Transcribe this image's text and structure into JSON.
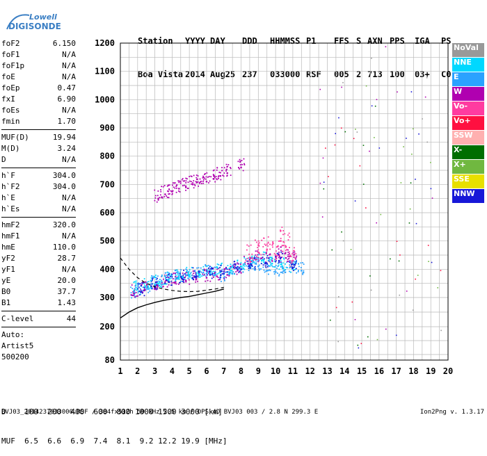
{
  "logo": {
    "line1": "Lowell",
    "line2": "DIGISONDE"
  },
  "header": {
    "row1": [
      "Station",
      "YYYY",
      "DAY",
      "DDD",
      "HHMMSS",
      "P1",
      "FFS",
      "S",
      "AXN",
      "PPS",
      "IGA",
      "PS"
    ],
    "row2": [
      "Boa Vista",
      "2014",
      "Aug25",
      "237",
      "033000",
      "RSF",
      "005",
      "2",
      "713",
      "100",
      "03+",
      "C0"
    ]
  },
  "params": {
    "group1": [
      {
        "name": "foF2",
        "value": "6.150"
      },
      {
        "name": "foF1",
        "value": "N/A"
      },
      {
        "name": "foF1p",
        "value": "N/A"
      },
      {
        "name": "foE",
        "value": "N/A"
      },
      {
        "name": "foEp",
        "value": "0.47"
      },
      {
        "name": "fxI",
        "value": "6.90"
      },
      {
        "name": "foEs",
        "value": "N/A"
      },
      {
        "name": "fmin",
        "value": "1.70"
      }
    ],
    "group2": [
      {
        "name": "MUF(D)",
        "value": "19.94"
      },
      {
        "name": "M(D)",
        "value": "3.24"
      },
      {
        "name": "D",
        "value": "N/A"
      }
    ],
    "group3": [
      {
        "name": "h`F",
        "value": "304.0"
      },
      {
        "name": "h`F2",
        "value": "304.0"
      },
      {
        "name": "h`E",
        "value": "N/A"
      },
      {
        "name": "h`Es",
        "value": "N/A"
      }
    ],
    "group4": [
      {
        "name": "hmF2",
        "value": "320.0"
      },
      {
        "name": "hmF1",
        "value": "N/A"
      },
      {
        "name": "hmE",
        "value": "110.0"
      },
      {
        "name": "yF2",
        "value": "28.7"
      },
      {
        "name": "yF1",
        "value": "N/A"
      },
      {
        "name": "yE",
        "value": "20.0"
      },
      {
        "name": "B0",
        "value": "37.7"
      },
      {
        "name": "B1",
        "value": "1.43"
      }
    ],
    "group5": [
      {
        "name": "C-level",
        "value": "44"
      }
    ],
    "auto": [
      "Auto:",
      "Artist5",
      "500200"
    ]
  },
  "legend": [
    {
      "label": "NoVal",
      "color": "#999999"
    },
    {
      "label": "NNE",
      "color": "#00d8ff"
    },
    {
      "label": "E",
      "color": "#2aa2ff"
    },
    {
      "label": "W",
      "color": "#b000b0"
    },
    {
      "label": "Vo-",
      "color": "#ff3ca0"
    },
    {
      "label": "Vo+",
      "color": "#ff1040"
    },
    {
      "label": "SSW",
      "color": "#ffb0b0"
    },
    {
      "label": "X-",
      "color": "#006e00"
    },
    {
      "label": "X+",
      "color": "#70b840"
    },
    {
      "label": "SSE",
      "color": "#e8e000"
    },
    {
      "label": "NNW",
      "color": "#1818d8"
    }
  ],
  "footer": {
    "d_row": "D    100  200  400  600  800 1000 1500 3000 [km]",
    "muf_row": "MUF  6.5  6.6  6.9  7.4  8.1  9.2 12.2 19.9 [MHz]",
    "info": "BVJ03_2014237033000.RSF / 384fx512h 50 kHz 2.5 km / DPS-4D BVJ03 003 / 2.8 N 299.3 E",
    "version": "Ion2Png v. 1.3.17"
  },
  "chart_data": {
    "type": "scatter",
    "xlabel": "",
    "ylabel": "",
    "xlim": [
      1,
      20
    ],
    "ylim": [
      80,
      1200
    ],
    "x_ticks": [
      "1",
      "2",
      "3",
      "4",
      "5",
      "6",
      "7",
      "8",
      "9",
      "10",
      "11",
      "12",
      "13",
      "14",
      "15",
      "16",
      "17",
      "18",
      "19",
      "20"
    ],
    "y_ticks": [
      "80",
      "200",
      "300",
      "400",
      "500",
      "600",
      "700",
      "800",
      "900",
      "1000",
      "1100",
      "1200"
    ],
    "grid": true,
    "series": [
      {
        "name": "E",
        "x": [
          1.8,
          2.2,
          2.6,
          3.0,
          3.4,
          3.8,
          4.2,
          4.6,
          5.0,
          5.5,
          6.0,
          6.5,
          7.0,
          7.5,
          8.0,
          8.5,
          9.0,
          9.5,
          10.0,
          10.5,
          11.0,
          11.5
        ],
        "y": [
          310,
          320,
          330,
          345,
          355,
          360,
          365,
          370,
          380,
          375,
          385,
          390,
          370,
          385,
          400,
          405,
          410,
          395,
          390,
          395,
          400,
          395
        ]
      },
      {
        "name": "W",
        "x": [
          1.8,
          2.4,
          3.0,
          3.6,
          4.2,
          4.8,
          5.4,
          6.0,
          6.6,
          7.2,
          7.8,
          8.4,
          9.0,
          9.6,
          10.2,
          10.6,
          11.0
        ],
        "y": [
          315,
          325,
          335,
          350,
          355,
          360,
          365,
          370,
          375,
          380,
          395,
          420,
          440,
          430,
          450,
          440,
          430
        ]
      },
      {
        "name": "NNE",
        "x": [
          2.0,
          2.6,
          3.2,
          3.8,
          4.4,
          5.0,
          5.6,
          6.2,
          6.8,
          7.4,
          8.0,
          8.6,
          9.2,
          9.8,
          10.4,
          11.0
        ],
        "y": [
          330,
          340,
          350,
          360,
          370,
          375,
          380,
          385,
          390,
          395,
          410,
          420,
          430,
          420,
          410,
          400
        ]
      },
      {
        "name": "NNW",
        "x": [
          2.2,
          3.0,
          3.8,
          4.6,
          5.4,
          6.2,
          7.0,
          7.8,
          8.6,
          9.4,
          10.2,
          11.0
        ],
        "y": [
          320,
          340,
          355,
          365,
          375,
          380,
          385,
          400,
          415,
          420,
          430,
          405
        ]
      },
      {
        "name": "W-2hop",
        "x": [
          3.2,
          3.6,
          4.0,
          4.4,
          4.8,
          5.2,
          5.6,
          6.0,
          6.4,
          6.8,
          7.2,
          8.0
        ],
        "y": [
          650,
          665,
          675,
          685,
          690,
          700,
          705,
          710,
          720,
          730,
          740,
          760
        ]
      },
      {
        "name": "Vo-",
        "x": [
          8.5,
          9.0,
          9.5,
          10.0,
          10.3,
          10.6,
          11.0
        ],
        "y": [
          440,
          460,
          470,
          450,
          500,
          480,
          430
        ]
      }
    ],
    "profile_curve": {
      "x": [
        1.0,
        1.5,
        2.0,
        2.5,
        3.0,
        3.5,
        4.0,
        4.5,
        5.0,
        5.5,
        6.0,
        6.5,
        7.0
      ],
      "y": [
        230,
        250,
        265,
        275,
        283,
        290,
        295,
        300,
        304,
        310,
        316,
        322,
        330
      ]
    },
    "dashed_curve": {
      "x": [
        1.0,
        1.5,
        2.0,
        2.5,
        3.0,
        3.5,
        4.0,
        4.5,
        5.0,
        5.5,
        6.0,
        6.5,
        7.0
      ],
      "y": [
        440,
        400,
        370,
        350,
        338,
        330,
        325,
        322,
        321,
        322,
        326,
        330,
        336
      ]
    }
  }
}
